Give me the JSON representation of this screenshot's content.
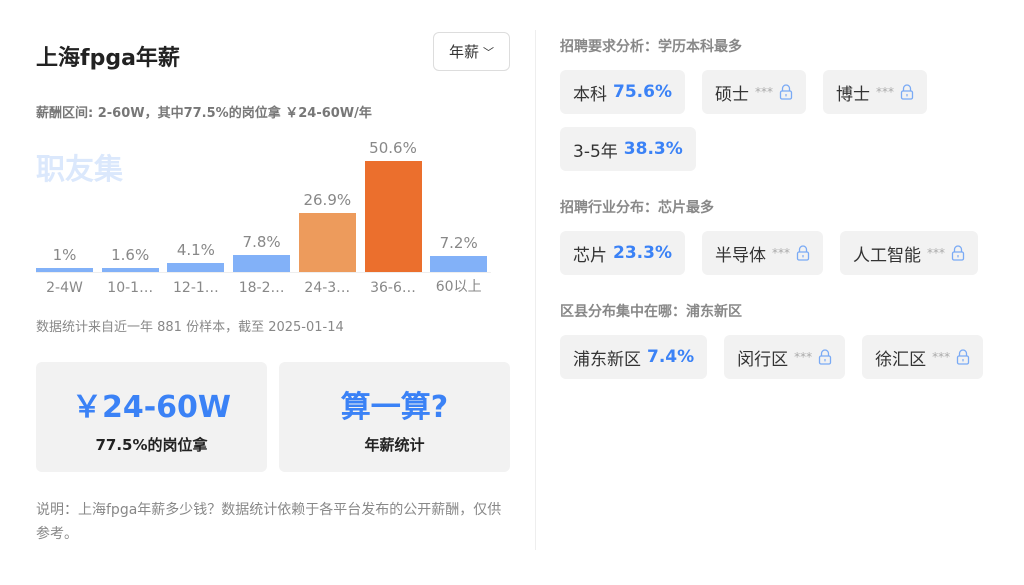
{
  "title": "上海fpga年薪",
  "selector": "年薪",
  "range_text": "薪酬区间: 2-60W，其中77.5%的岗位拿 ￥24-60W/年",
  "watermark": "职友集",
  "chart_data": {
    "type": "bar",
    "categories": [
      "2-4W",
      "10-1…",
      "12-1…",
      "18-2…",
      "24-3…",
      "36-6…",
      "60以上"
    ],
    "values": [
      1,
      1.6,
      4.1,
      7.8,
      26.9,
      50.6,
      7.2
    ],
    "labels": [
      "1%",
      "1.6%",
      "4.1%",
      "7.8%",
      "26.9%",
      "50.6%",
      "7.2%"
    ],
    "colors": [
      "#82b1f8",
      "#82b1f8",
      "#82b1f8",
      "#82b1f8",
      "#ed9b5c",
      "#eb6f2d",
      "#82b1f8"
    ]
  },
  "sample_note": "数据统计来自近一年 881 份样本，截至 2025-01-14",
  "cards": [
    {
      "big": "￥24-60W",
      "small": "77.5%的岗位拿"
    },
    {
      "big": "算一算?",
      "small": "年薪统计"
    }
  ],
  "description": "说明：上海fpga年薪多少钱？数据统计依赖于各平台发布的公开薪酬，仅供参考。",
  "sections": [
    {
      "title": "招聘要求分析：学历本科最多",
      "chips": [
        {
          "label": "本科",
          "pct": "75.6%"
        },
        {
          "label": "硕士",
          "stars": "***",
          "locked": true
        },
        {
          "label": "博士",
          "stars": "***",
          "locked": true
        },
        {
          "label": "3-5年",
          "pct": "38.3%"
        }
      ]
    },
    {
      "title": "招聘行业分布：芯片最多",
      "chips": [
        {
          "label": "芯片",
          "pct": "23.3%"
        },
        {
          "label": "半导体",
          "stars": "***",
          "locked": true
        },
        {
          "label": "人工智能",
          "stars": "***",
          "locked": true
        }
      ]
    },
    {
      "title": "区县分布集中在哪：浦东新区",
      "chips": [
        {
          "label": "浦东新区",
          "pct": "7.4%"
        },
        {
          "label": "闵行区",
          "stars": "***",
          "locked": true
        },
        {
          "label": "徐汇区",
          "stars": "***",
          "locked": true
        }
      ]
    }
  ]
}
